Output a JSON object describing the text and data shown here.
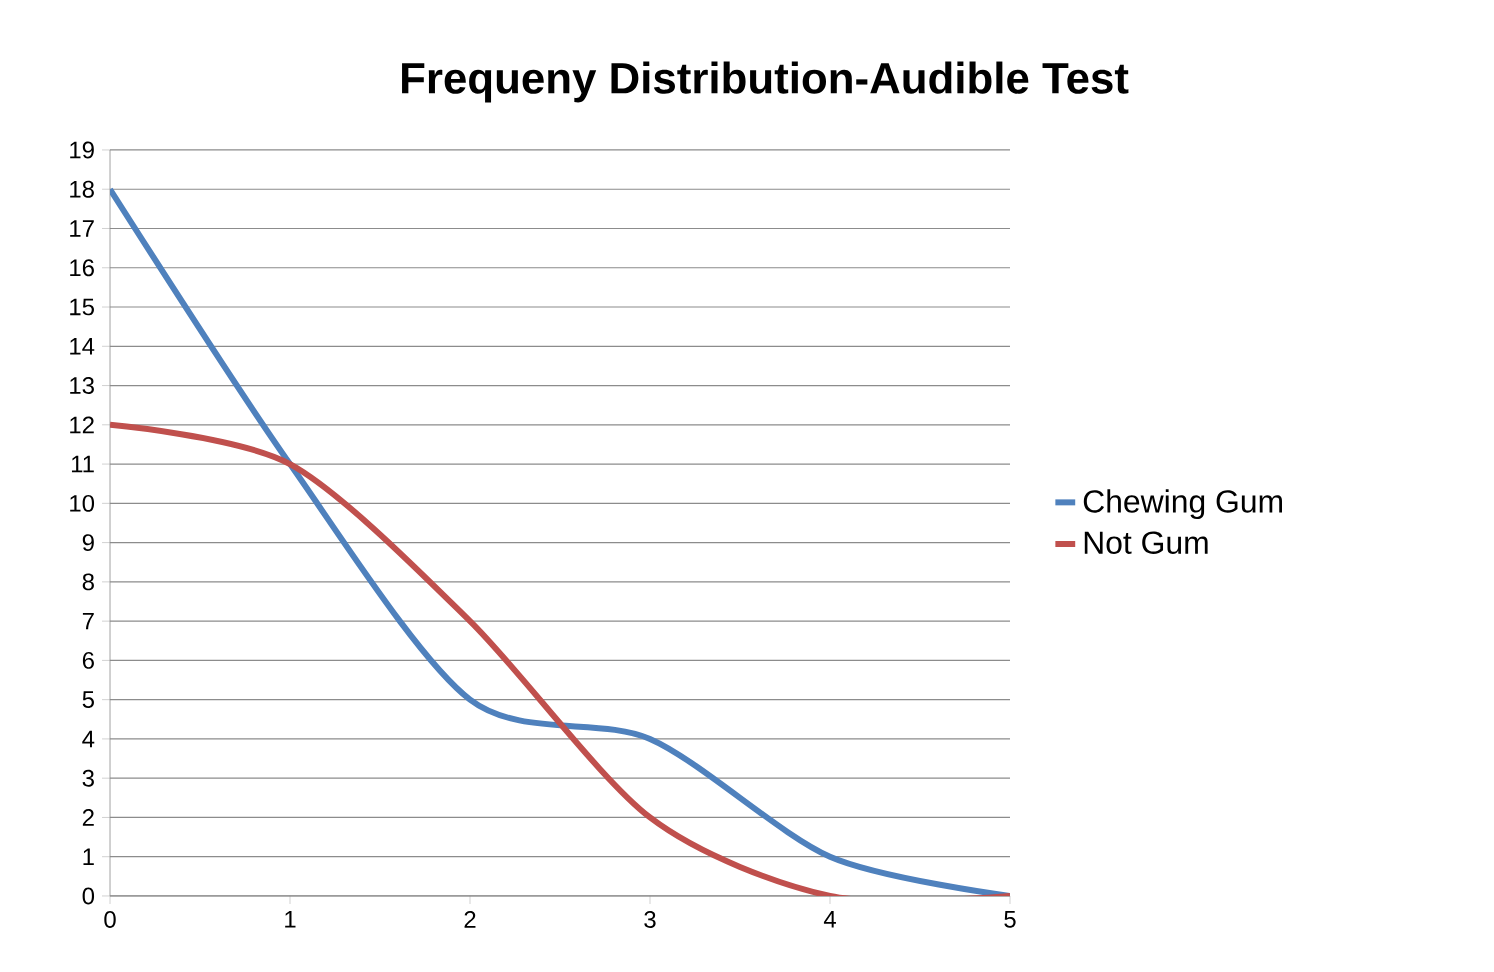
{
  "chart_data": {
    "type": "line",
    "title": "Frequeny Distribution-Audible Test",
    "x": [
      0,
      1,
      2,
      3,
      4,
      5
    ],
    "xlim": [
      0,
      5
    ],
    "xticks": [
      0,
      1,
      2,
      3,
      4,
      5
    ],
    "ylim": [
      0,
      19
    ],
    "yticks": [
      0,
      1,
      2,
      3,
      4,
      5,
      6,
      7,
      8,
      9,
      10,
      11,
      12,
      13,
      14,
      15,
      16,
      17,
      18,
      19
    ],
    "grid": "y",
    "legend": "right",
    "marker": "none",
    "series": [
      {
        "name": "Chewing Gum",
        "color": "#4f81bd",
        "values": [
          18,
          11,
          5,
          4,
          1,
          0
        ]
      },
      {
        "name": "Not Gum",
        "color": "#c0504d",
        "values": [
          12,
          11,
          7,
          2,
          0,
          0
        ]
      }
    ]
  }
}
